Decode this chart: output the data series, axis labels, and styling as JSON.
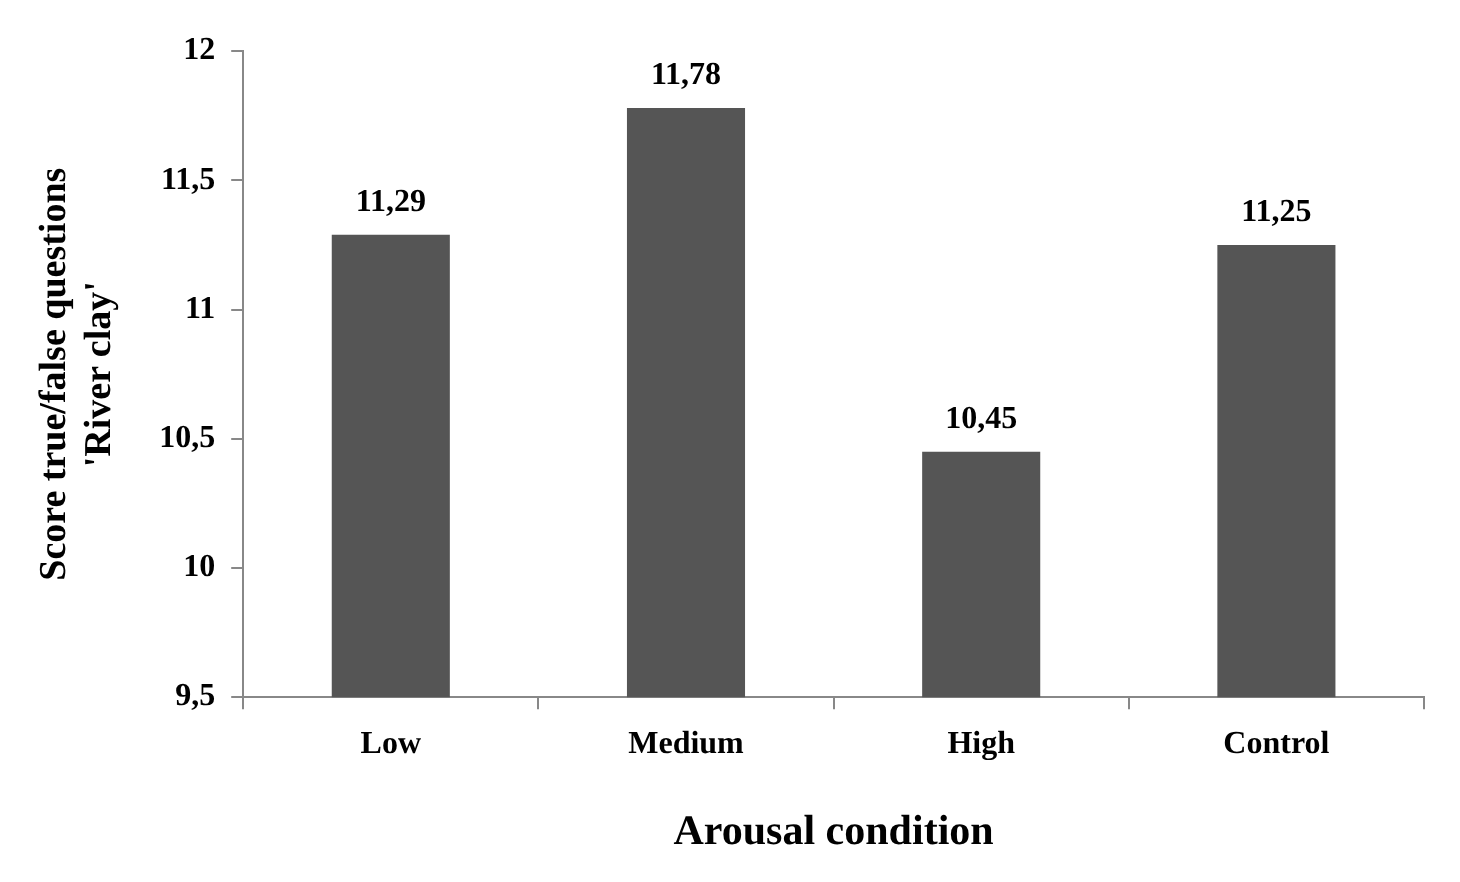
{
  "chart_data": {
    "type": "bar",
    "xlabel": "Arousal condition",
    "ylabel": "Score true/false questions\n'River clay'",
    "categories": [
      "Low",
      "Medium",
      "High",
      "Control"
    ],
    "values": [
      11.29,
      11.78,
      10.45,
      11.25
    ],
    "value_labels": [
      "11,29",
      "11,78",
      "10,45",
      "11,25"
    ],
    "color": "#555555",
    "ylim": [
      9.5,
      12
    ],
    "yticks": [
      {
        "value": 9.5,
        "label": "9,5"
      },
      10,
      {
        "value": 10.5,
        "label": "10,5"
      },
      11,
      {
        "value": 11.5,
        "label": "11,5"
      },
      12
    ],
    "grid": false,
    "legend": false
  }
}
